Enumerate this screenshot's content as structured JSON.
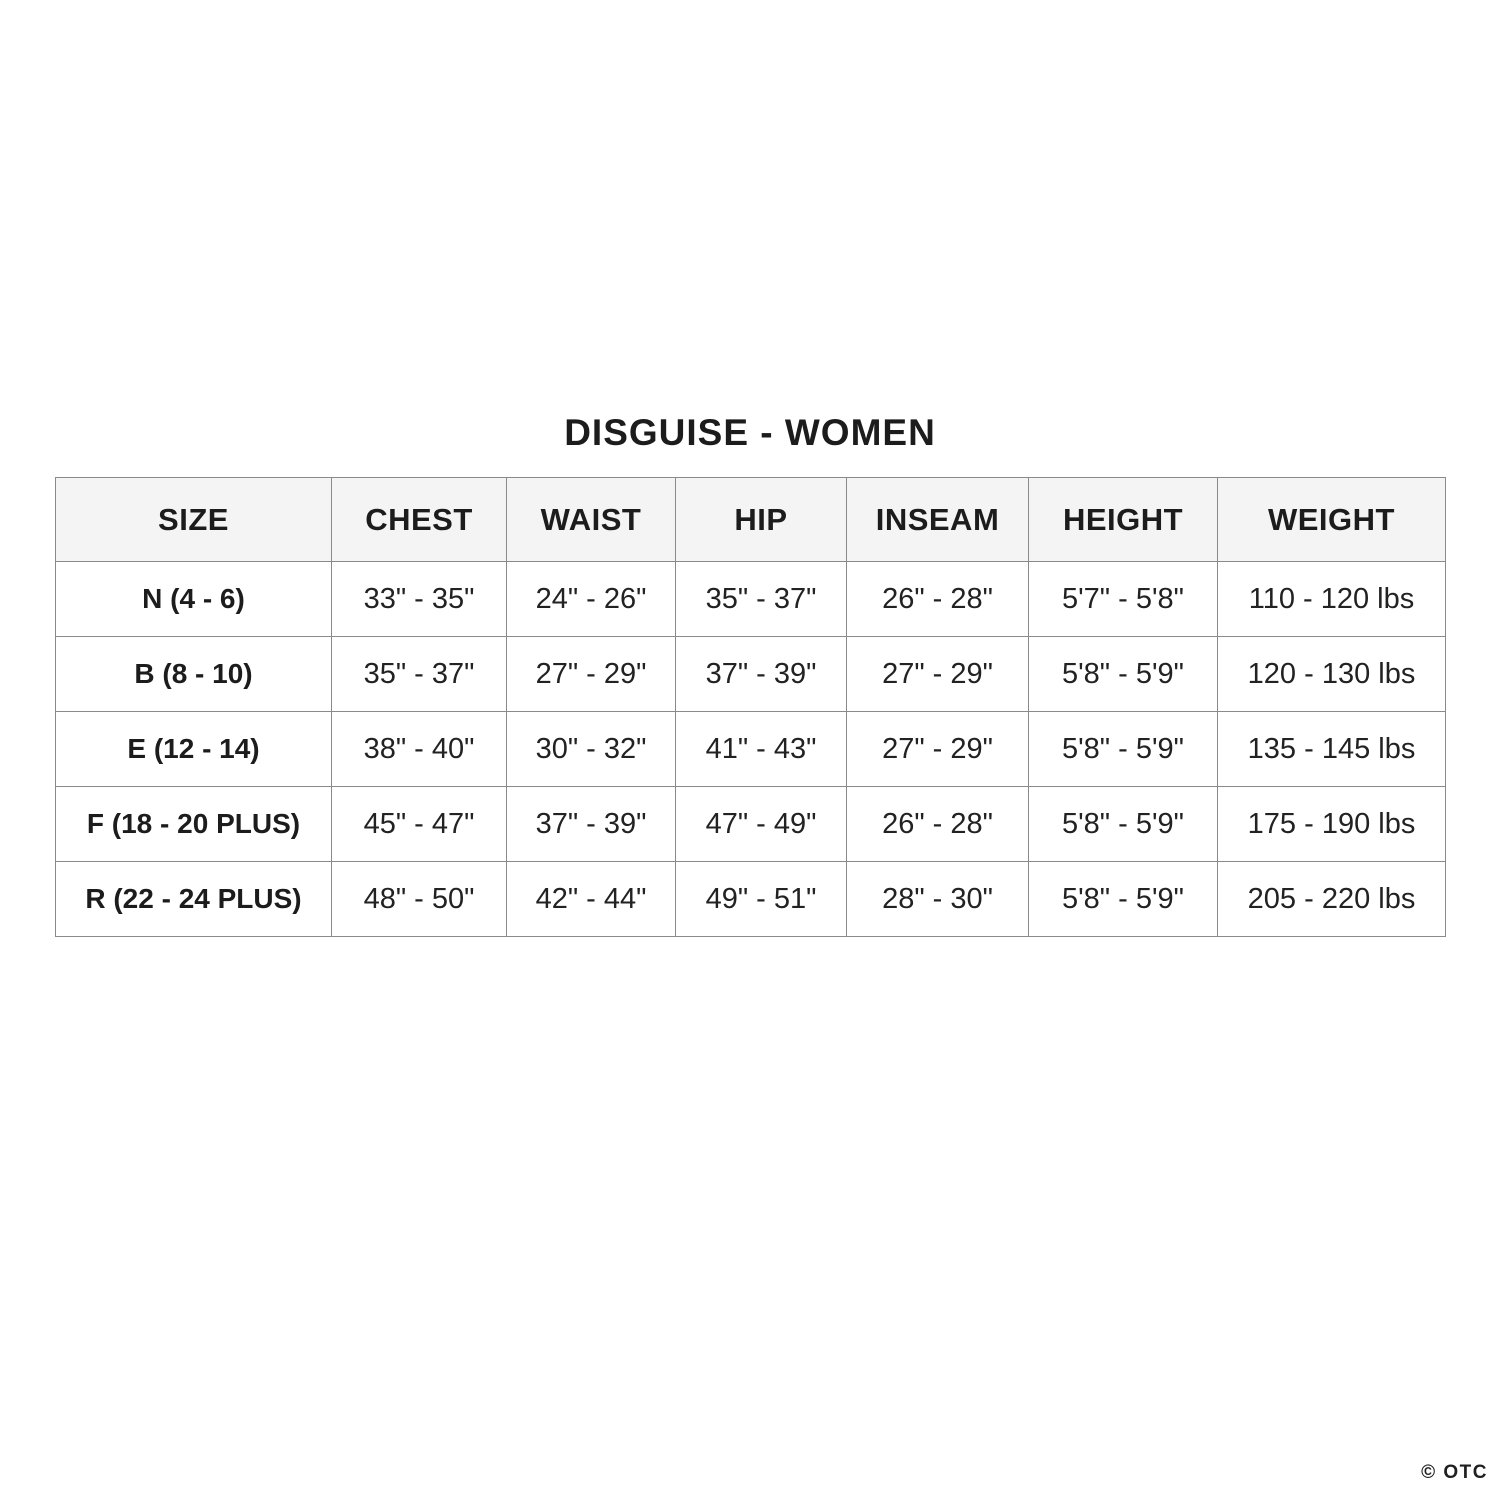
{
  "chart_data": {
    "type": "table",
    "title": "DISGUISE - WOMEN",
    "columns": [
      "SIZE",
      "CHEST",
      "WAIST",
      "HIP",
      "INSEAM",
      "HEIGHT",
      "WEIGHT"
    ],
    "rows": [
      [
        "N (4 - 6)",
        "33\" - 35\"",
        "24\" - 26\"",
        "35\" - 37\"",
        "26\" - 28\"",
        "5'7\" - 5'8\"",
        "110 - 120 lbs"
      ],
      [
        "B (8 - 10)",
        "35\" - 37\"",
        "27\" - 29\"",
        "37\" - 39\"",
        "27\" - 29\"",
        "5'8\" - 5'9\"",
        "120 - 130 lbs"
      ],
      [
        "E (12 - 14)",
        "38\" - 40\"",
        "30\" - 32\"",
        "41\" - 43\"",
        "27\" - 29\"",
        "5'8\" - 5'9\"",
        "135 - 145 lbs"
      ],
      [
        "F (18 - 20 PLUS)",
        "45\" - 47\"",
        "37\" - 39\"",
        "47\" - 49\"",
        "26\" - 28\"",
        "5'8\" - 5'9\"",
        "175 - 190 lbs"
      ],
      [
        "R (22 - 24 PLUS)",
        "48\" - 50\"",
        "42\" - 44\"",
        "49\" - 51\"",
        "28\" - 30\"",
        "5'8\" - 5'9\"",
        "205 - 220 lbs"
      ]
    ]
  },
  "watermark": {
    "text": "© OTC"
  },
  "colors": {
    "header_bg": "#f4f4f4",
    "border": "#8a8a8a",
    "outer_border": "#5f5f5f",
    "text": "#1c1c1c",
    "background": "#ffffff"
  }
}
